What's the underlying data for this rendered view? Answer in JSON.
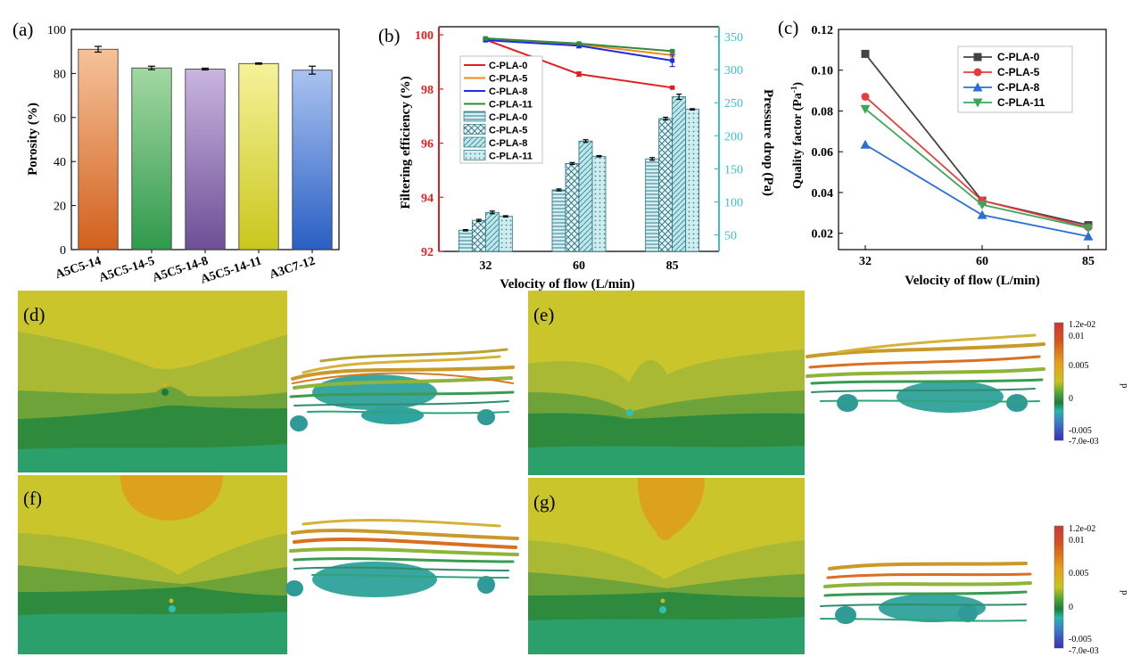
{
  "panel_labels": {
    "a": "(a)",
    "b": "(b)",
    "c": "(c)",
    "d": "(d)",
    "e": "(e)",
    "f": "(f)",
    "g": "(g)"
  },
  "chart_data": [
    {
      "id": "a",
      "type": "bar",
      "categories": [
        "A5C5-14",
        "A5C5-14-5",
        "A5C5-14-8",
        "A5C5-14-11",
        "A3C7-12"
      ],
      "values": [
        91,
        82.5,
        82,
        84.5,
        81.5
      ],
      "errors": [
        1.3,
        0.8,
        0.4,
        0.3,
        1.8
      ],
      "colors_top": [
        "#f6c29a",
        "#a3d8a3",
        "#c9b6df",
        "#f6f29b",
        "#a9c3f0"
      ],
      "colors_bottom": [
        "#d2601c",
        "#2f9a4c",
        "#6e4e96",
        "#c9c71c",
        "#2a5fc4"
      ],
      "ylabel": "Porosity (%)",
      "ylim": [
        0,
        100
      ],
      "yticks": [
        0,
        20,
        40,
        60,
        80,
        100
      ]
    },
    {
      "id": "b",
      "type": "line",
      "categories": [
        "32",
        "60",
        "85"
      ],
      "xlabel": "Velocity of flow (L/min)",
      "ylabel_left": "Filtering efficiency (%)",
      "ylabel_right": "Pressure drop (Pa)",
      "ylim_left": [
        92,
        100.3
      ],
      "yticks_left": [
        92,
        94,
        96,
        98,
        100
      ],
      "ylim_right": [
        25,
        365
      ],
      "yticks_right": [
        50,
        100,
        150,
        200,
        250,
        300,
        350
      ],
      "left_axis_color": "#e02020",
      "right_axis_color": "#3ec0cc",
      "line_series": [
        {
          "name": "C-PLA-0",
          "color": "#e02020",
          "values": [
            99.82,
            98.55,
            98.05
          ],
          "errors": [
            0.05,
            0.08,
            0.03
          ]
        },
        {
          "name": "C-PLA-5",
          "color": "#f28a1a",
          "values": [
            99.85,
            99.65,
            99.25
          ],
          "errors": [
            0.04,
            0.05,
            0.05
          ]
        },
        {
          "name": "C-PLA-8",
          "color": "#1f2ee0",
          "values": [
            99.8,
            99.6,
            99.05
          ],
          "errors": [
            0.05,
            0.08,
            0.22
          ]
        },
        {
          "name": "C-PLA-11",
          "color": "#2e8b3e",
          "values": [
            99.87,
            99.68,
            99.4
          ],
          "errors": [
            0.03,
            0.03,
            0.03
          ]
        }
      ],
      "bar_series": [
        {
          "name": "C-PLA-0",
          "pattern": "horizontal",
          "values": [
            57,
            118,
            165
          ],
          "errors": [
            1,
            1.5,
            2
          ]
        },
        {
          "name": "C-PLA-5",
          "pattern": "crosshatch",
          "values": [
            72,
            158,
            226
          ],
          "errors": [
            1.5,
            1.5,
            2
          ]
        },
        {
          "name": "C-PLA-8",
          "pattern": "diagonal",
          "values": [
            84,
            192,
            259
          ],
          "errors": [
            2,
            2,
            4
          ]
        },
        {
          "name": "C-PLA-11",
          "pattern": "dots",
          "values": [
            78,
            169,
            240
          ],
          "errors": [
            1,
            1,
            1
          ]
        }
      ]
    },
    {
      "id": "c",
      "type": "line",
      "categories": [
        "32",
        "60",
        "85"
      ],
      "xlabel": "Velocity of flow (L/min)",
      "ylabel": "Quality factor (Pa",
      "ylabel_sup": "-1",
      "ylabel_end": ")",
      "ylim": [
        0.012,
        0.12
      ],
      "yticks": [
        "0.02",
        "0.04",
        "0.06",
        "0.08",
        "0.10",
        "0.12"
      ],
      "series": [
        {
          "name": "C-PLA-0",
          "color": "#444444",
          "marker": "square",
          "values": [
            0.108,
            0.036,
            0.024
          ]
        },
        {
          "name": "C-PLA-5",
          "color": "#ea3b3b",
          "marker": "circle",
          "values": [
            0.087,
            0.036,
            0.023
          ]
        },
        {
          "name": "C-PLA-8",
          "color": "#2b6fd6",
          "marker": "triangle-up",
          "values": [
            0.0635,
            0.029,
            0.0185
          ]
        },
        {
          "name": "C-PLA-11",
          "color": "#3aa85a",
          "marker": "triangle-down",
          "values": [
            0.081,
            0.034,
            0.0225
          ]
        }
      ]
    }
  ],
  "colorbar": {
    "title": "p",
    "ticks": [
      "1.2e-02",
      "0.01",
      "0.005",
      "0",
      "-0.005",
      "-7.0e-03"
    ]
  }
}
